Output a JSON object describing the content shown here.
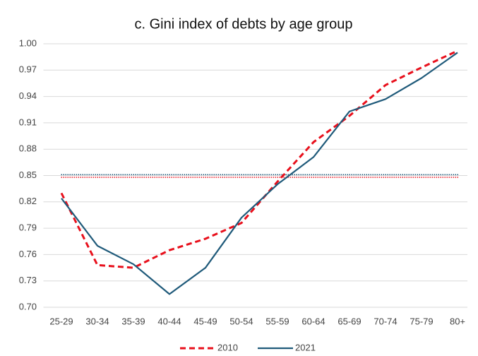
{
  "chart_data": {
    "type": "line",
    "title": "c. Gini index of debts by age group",
    "categories": [
      "25-29",
      "30-34",
      "35-39",
      "40-44",
      "45-49",
      "50-54",
      "55-59",
      "60-64",
      "65-69",
      "70-74",
      "75-79",
      "80+"
    ],
    "series": [
      {
        "name": "2010",
        "color": "#e8101c",
        "dash": true,
        "values": [
          0.83,
          0.748,
          0.745,
          0.765,
          0.778,
          0.796,
          0.843,
          0.888,
          0.918,
          0.953,
          0.973,
          0.992
        ]
      },
      {
        "name": "2021",
        "color": "#1f5a7a",
        "dash": false,
        "values": [
          0.824,
          0.77,
          0.749,
          0.715,
          0.745,
          0.802,
          0.84,
          0.871,
          0.923,
          0.937,
          0.961,
          0.99
        ]
      }
    ],
    "reference_lines": [
      {
        "value": 0.848,
        "color": "#e8101c"
      },
      {
        "value": 0.851,
        "color": "#1f5a7a"
      }
    ],
    "ylim": [
      0.7,
      1.0
    ],
    "yticks": [
      {
        "value": 0.7,
        "label": "0.70"
      },
      {
        "value": 0.73,
        "label": "0.73"
      },
      {
        "value": 0.76,
        "label": "0.76"
      },
      {
        "value": 0.79,
        "label": "0.79"
      },
      {
        "value": 0.82,
        "label": "0.82"
      },
      {
        "value": 0.85,
        "label": "0.85"
      },
      {
        "value": 0.88,
        "label": "0.88"
      },
      {
        "value": 0.91,
        "label": "0.91"
      },
      {
        "value": 0.94,
        "label": "0.94"
      },
      {
        "value": 0.97,
        "label": "0.97"
      },
      {
        "value": 1.0,
        "label": "1.00"
      }
    ],
    "grid": true,
    "legend": "bottom"
  }
}
